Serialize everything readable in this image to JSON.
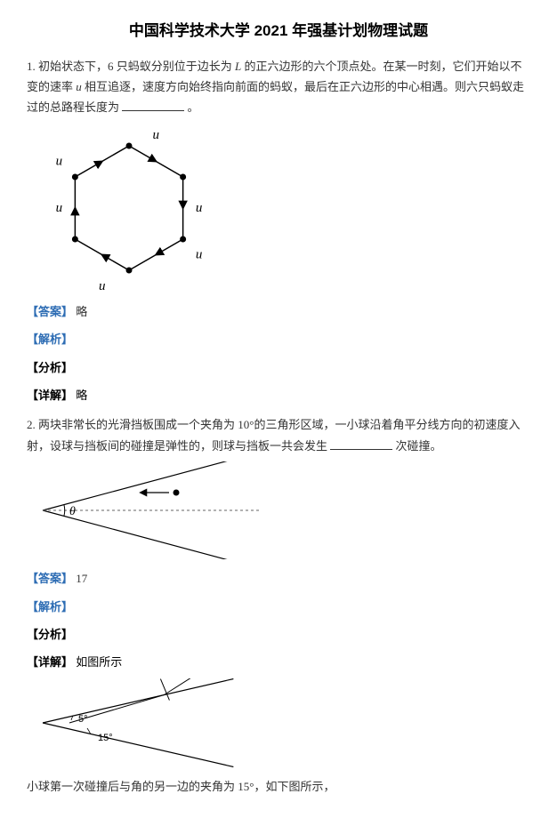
{
  "title": "中国科学技术大学 2021 年强基计划物理试题",
  "q1": {
    "num": "1.",
    "text_a": "初始状态下，6 只蚂蚁分别位于边长为",
    "var_L": "L",
    "text_b": "的正六边形的六个顶点处。在某一时刻，它们开始以不变的速率",
    "var_u": "u",
    "text_c": "相互追逐，速度方向始终指向前面的蚂蚁，最后在正六边形的中心相遇。则六只蚂蚁走过的总路程长度为",
    "text_d": "。",
    "ans_label": "【答案】",
    "ans": "略",
    "jiexi_label": "【解析】",
    "jiexi": "",
    "fenxi_label": "【分析】",
    "fenxi": "",
    "xiangjie_label": "【详解】",
    "xiangjie": "略",
    "hex_u": "u",
    "hexagon": {
      "stroke": "#000",
      "stroke_width": 1.5,
      "vertex_r": 3.5,
      "label_font": "italic 15px 'Times New Roman', serif"
    }
  },
  "q2": {
    "num": "2.",
    "text_a": "两块非常长的光滑挡板围成一个夹角为 10°的三角形区域，一小球沿着角平分线方向的初速度入射，设球与挡板间的碰撞是弹性的，则球与挡板一共会发生",
    "text_b": "次碰撞。",
    "ans_label": "【答案】",
    "ans": "17",
    "jiexi_label": "【解析】",
    "jiexi": "",
    "fenxi_label": "【分析】",
    "fenxi": "",
    "xiangjie_label": "【详解】",
    "xiangjie": "如图所示",
    "theta": "θ",
    "angle5": "5°",
    "angle15": "15°",
    "footer": "小球第一次碰撞后与角的另一边的夹角为 15°，如下图所示，",
    "wedge": {
      "stroke": "#000",
      "dash_stroke": "#666",
      "stroke_width": 1.2,
      "dash": "3,3",
      "label_font": "italic 14px 'Times New Roman', serif"
    }
  }
}
